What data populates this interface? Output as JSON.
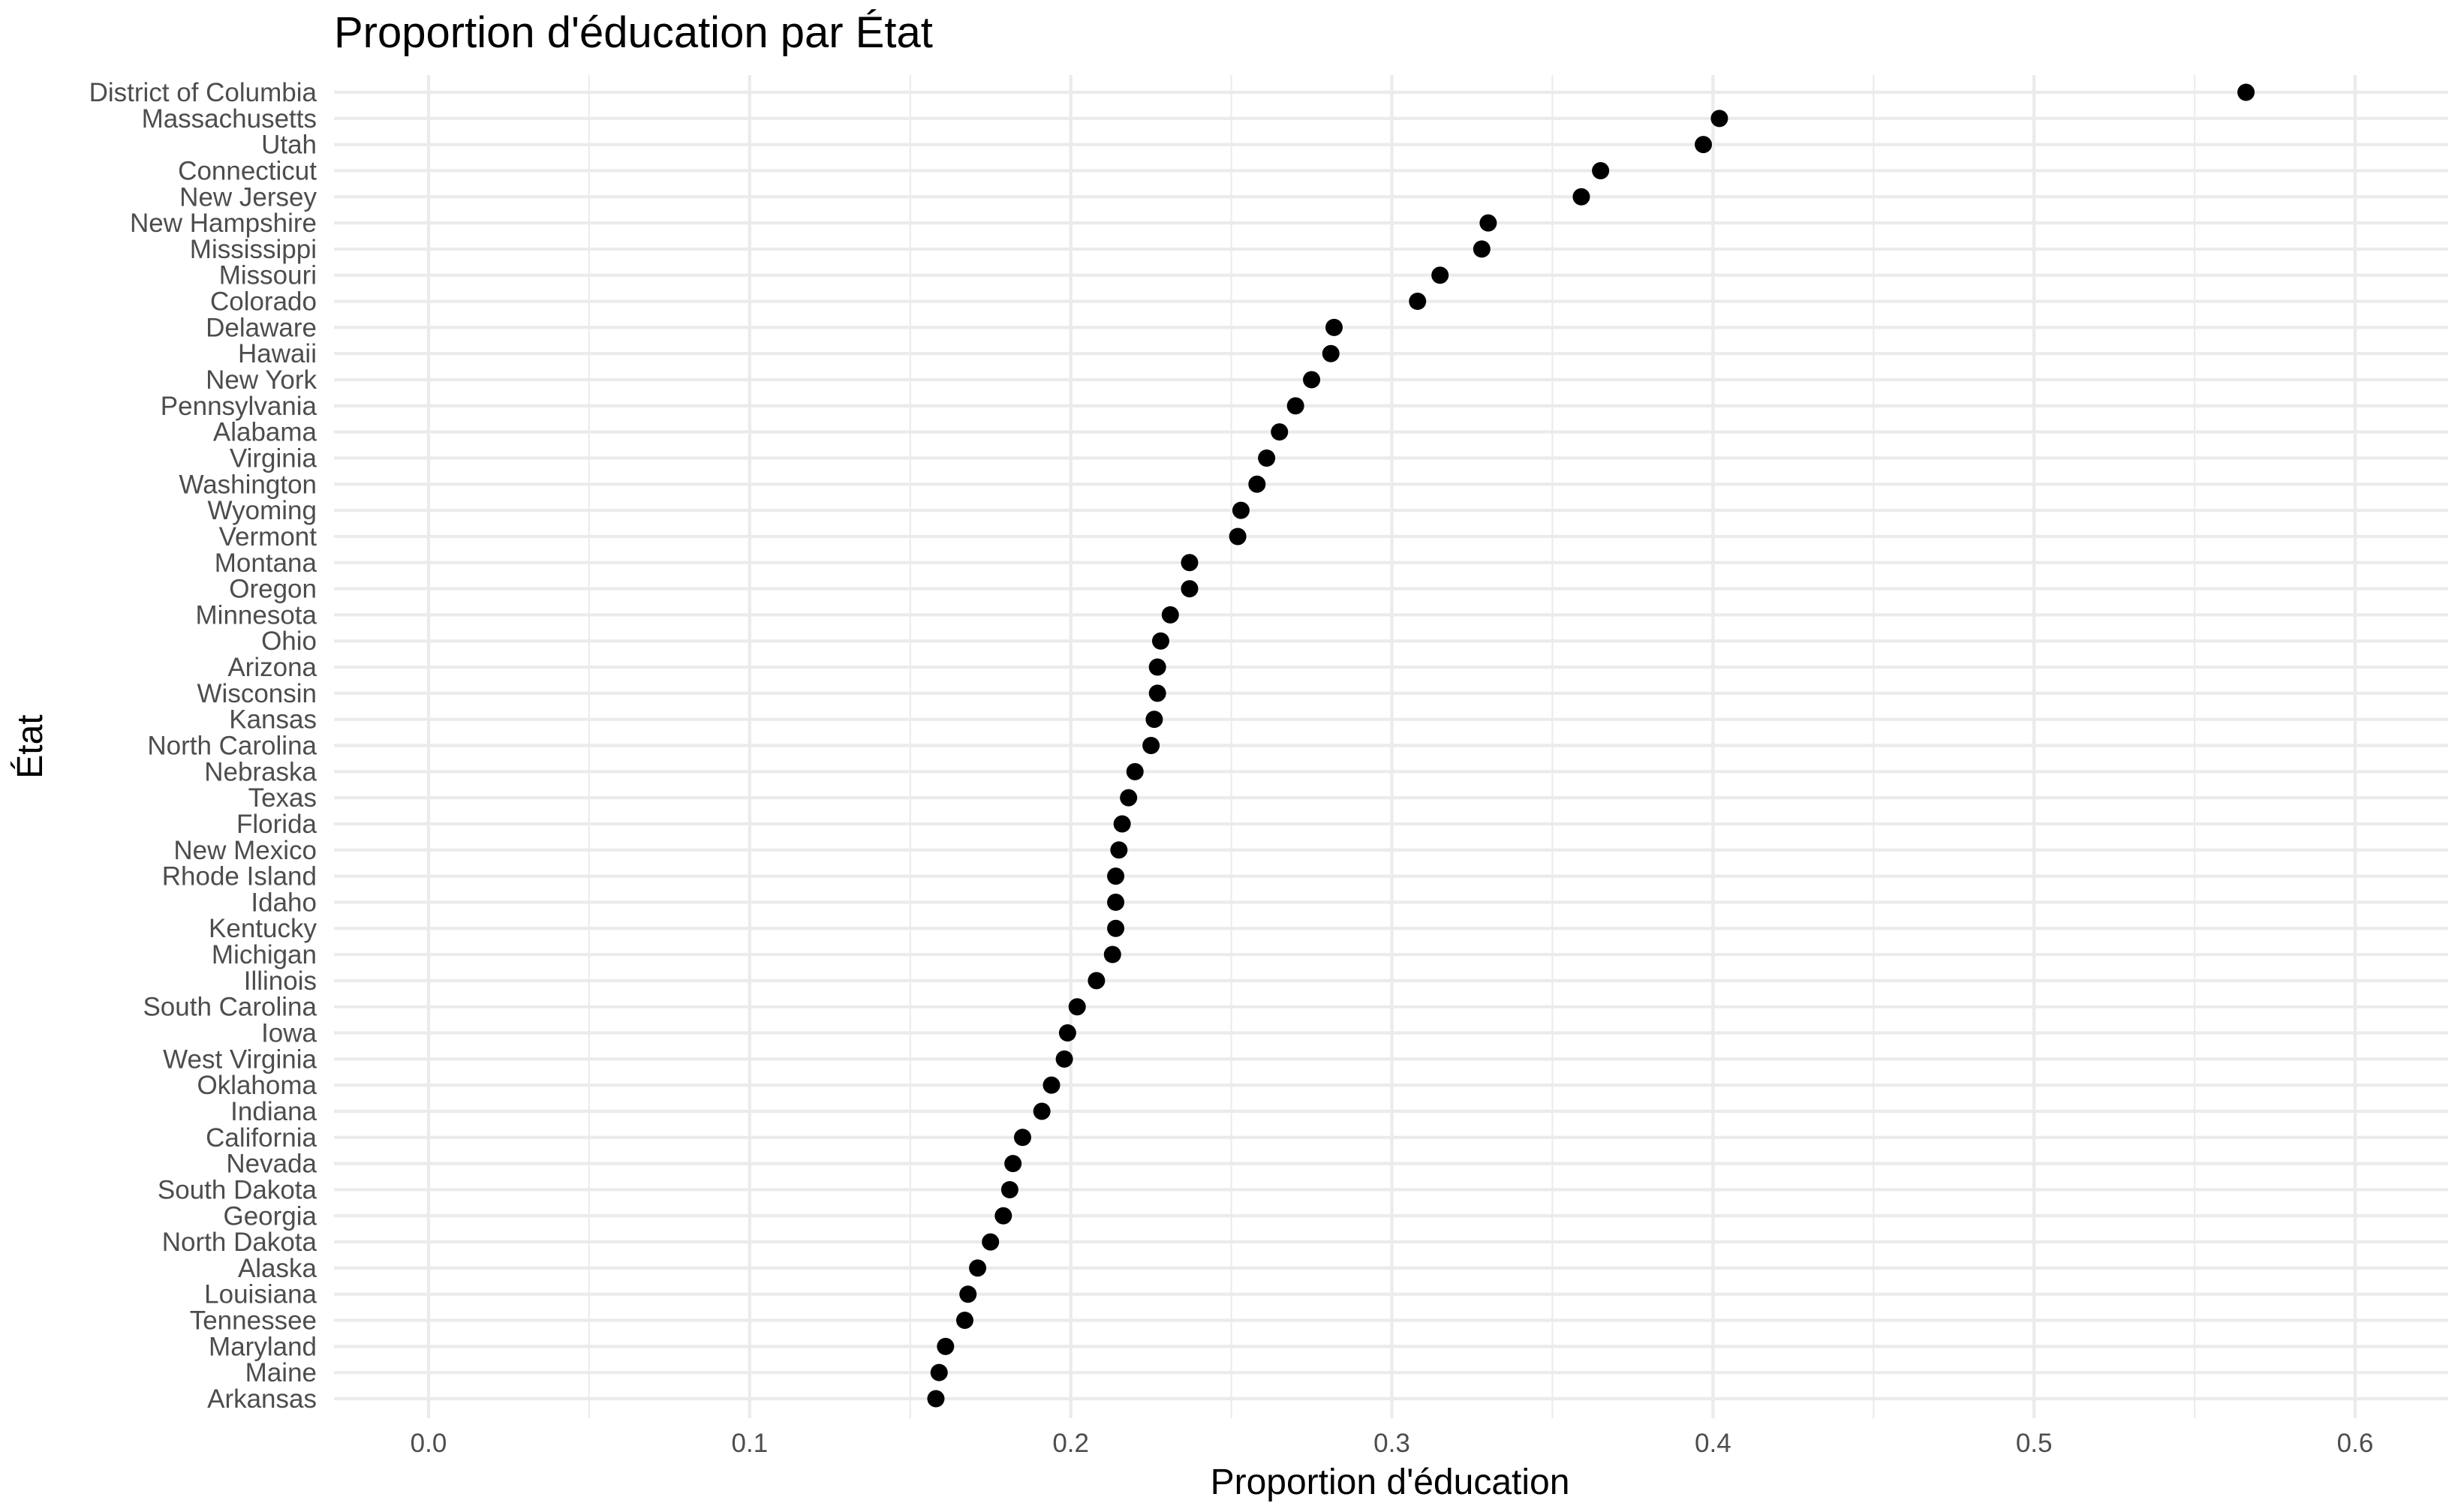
{
  "chart_data": {
    "type": "scatter",
    "title": "Proportion d'éducation par État",
    "xlabel": "Proportion d'éducation",
    "ylabel": "État",
    "xlim": [
      -0.03,
      0.625
    ],
    "x_ticks": [
      0.0,
      0.1,
      0.2,
      0.3,
      0.4,
      0.5,
      0.6
    ],
    "x_tick_labels": [
      "0.0",
      "0.1",
      "0.2",
      "0.3",
      "0.4",
      "0.5",
      "0.6"
    ],
    "grid": true,
    "legend": "none",
    "point_color": "#000000",
    "categories": [
      "District of Columbia",
      "Massachusetts",
      "Utah",
      "Connecticut",
      "New Jersey",
      "New Hampshire",
      "Mississippi",
      "Missouri",
      "Colorado",
      "Delaware",
      "Hawaii",
      "New York",
      "Pennsylvania",
      "Alabama",
      "Virginia",
      "Washington",
      "Wyoming",
      "Vermont",
      "Montana",
      "Oregon",
      "Minnesota",
      "Ohio",
      "Arizona",
      "Wisconsin",
      "Kansas",
      "North Carolina",
      "Nebraska",
      "Texas",
      "Florida",
      "New Mexico",
      "Rhode Island",
      "Idaho",
      "Kentucky",
      "Michigan",
      "Illinois",
      "South Carolina",
      "Iowa",
      "West Virginia",
      "Oklahoma",
      "Indiana",
      "California",
      "Nevada",
      "South Dakota",
      "Georgia",
      "North Dakota",
      "Alaska",
      "Louisiana",
      "Tennessee",
      "Maryland",
      "Maine",
      "Arkansas"
    ],
    "values": [
      0.566,
      0.402,
      0.397,
      0.365,
      0.359,
      0.33,
      0.328,
      0.315,
      0.308,
      0.282,
      0.281,
      0.275,
      0.27,
      0.265,
      0.261,
      0.258,
      0.253,
      0.252,
      0.237,
      0.237,
      0.231,
      0.228,
      0.227,
      0.227,
      0.226,
      0.225,
      0.22,
      0.218,
      0.216,
      0.215,
      0.214,
      0.214,
      0.214,
      0.213,
      0.208,
      0.202,
      0.199,
      0.198,
      0.194,
      0.191,
      0.185,
      0.182,
      0.181,
      0.179,
      0.175,
      0.171,
      0.168,
      0.167,
      0.161,
      0.159,
      0.158
    ]
  }
}
